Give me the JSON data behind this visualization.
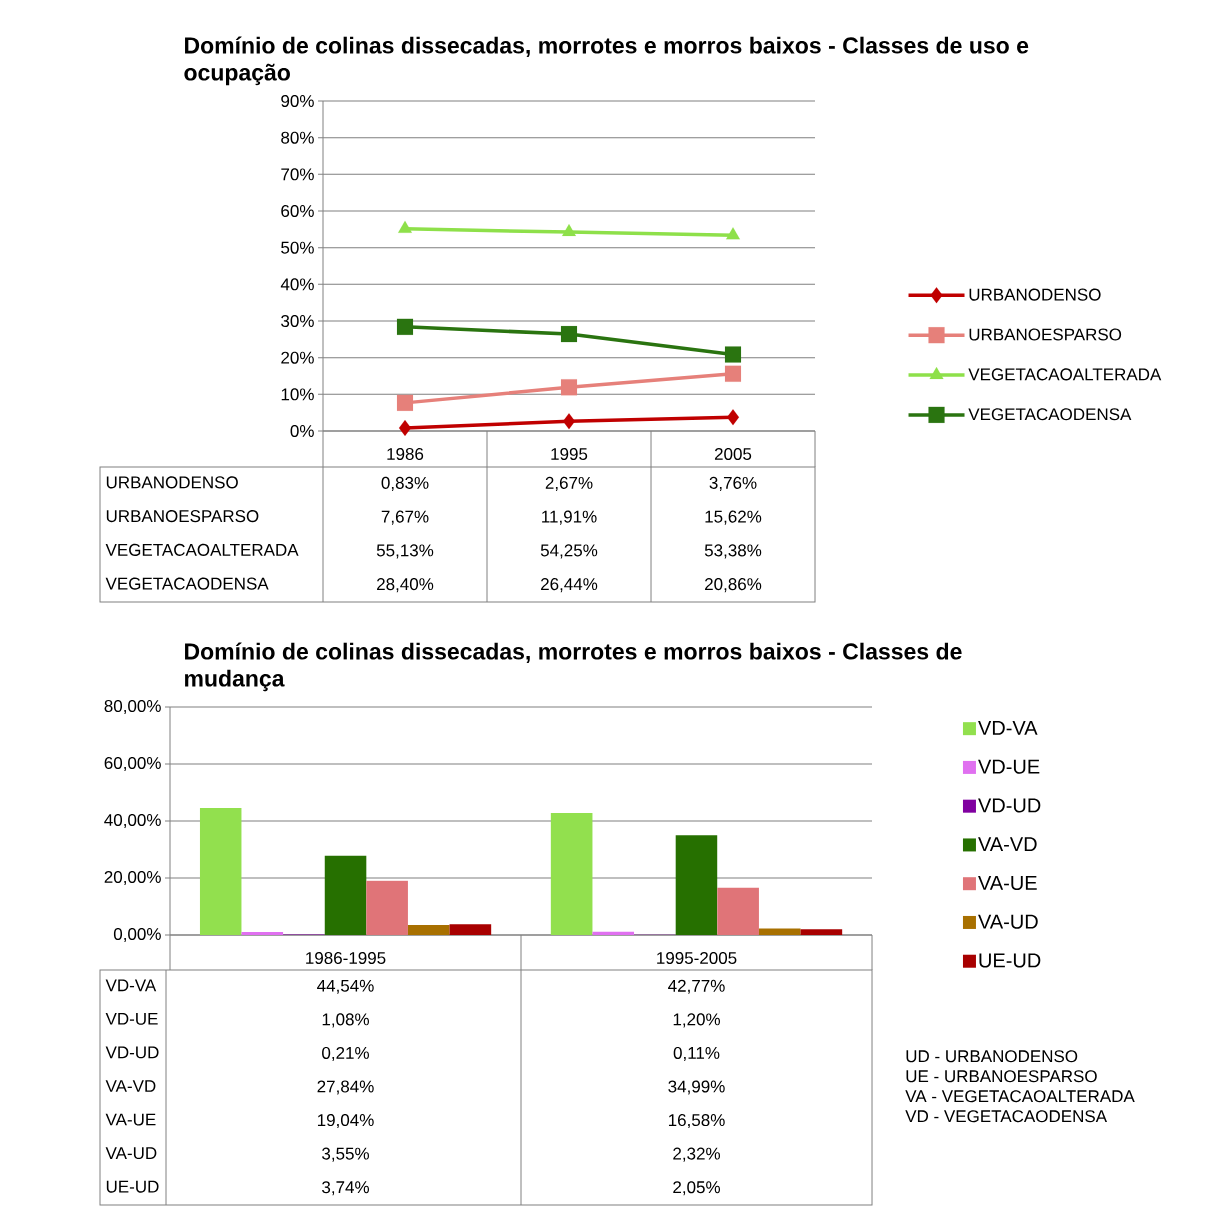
{
  "chart_data": [
    {
      "type": "line",
      "title": "Domínio de colinas dissecadas, morrotes e morros baixos - Classes de uso e ocupação",
      "categories": [
        "1986",
        "1995",
        "2005"
      ],
      "ylim": [
        0,
        90
      ],
      "yticks": [
        {
          "value": 0,
          "label": "0%"
        },
        {
          "value": 10,
          "label": "10%"
        },
        {
          "value": 20,
          "label": "20%"
        },
        {
          "value": 30,
          "label": "30%"
        },
        {
          "value": 40,
          "label": "40%"
        },
        {
          "value": 50,
          "label": "50%"
        },
        {
          "value": 60,
          "label": "60%"
        },
        {
          "value": 70,
          "label": "70%"
        },
        {
          "value": 80,
          "label": "80%"
        },
        {
          "value": 90,
          "label": "90%"
        }
      ],
      "grid": "y",
      "legend": "right",
      "series": [
        {
          "name": "URBANODENSO",
          "color": "#c00000",
          "marker": "diamond",
          "values": [
            0.83,
            2.67,
            3.76
          ],
          "value_labels": [
            "0,83%",
            "2,67%",
            "3,76%"
          ]
        },
        {
          "name": "URBANOESPARSO",
          "color": "#e6807a",
          "marker": "square",
          "values": [
            7.67,
            11.91,
            15.62
          ],
          "value_labels": [
            "7,67%",
            "11,91%",
            "15,62%"
          ]
        },
        {
          "name": "VEGETACAOALTERADA",
          "color": "#8ee04a",
          "marker": "triangle",
          "values": [
            55.13,
            54.25,
            53.38
          ],
          "value_labels": [
            "55,13%",
            "54,25%",
            "53,38%"
          ]
        },
        {
          "name": "VEGETACAODENSA",
          "color": "#2a7410",
          "marker": "square",
          "values": [
            28.4,
            26.44,
            20.86
          ],
          "value_labels": [
            "28,40%",
            "26,44%",
            "20,86%"
          ]
        }
      ]
    },
    {
      "type": "bar",
      "title": "Domínio de colinas dissecadas, morrotes e morros baixos - Classes de mudança",
      "categories": [
        "1986-1995",
        "1995-2005"
      ],
      "ylim": [
        0,
        80
      ],
      "yticks": [
        {
          "value": 0,
          "label": "0,00%"
        },
        {
          "value": 20,
          "label": "20,00%"
        },
        {
          "value": 40,
          "label": "40,00%"
        },
        {
          "value": 60,
          "label": "60,00%"
        },
        {
          "value": 80,
          "label": "80,00%"
        }
      ],
      "grid": "y",
      "legend": "right",
      "annotations": [
        "UD - URBANODENSO",
        "UE - URBANOESPARSO",
        "VA - VEGETACAOALTERADA",
        "VD - VEGETACAODENSA"
      ],
      "series": [
        {
          "name": "VD-VA",
          "color": "#92e04e",
          "values": [
            44.54,
            42.77
          ],
          "value_labels": [
            "44,54%",
            "42,77%"
          ]
        },
        {
          "name": "VD-UE",
          "color": "#e070f0",
          "values": [
            1.08,
            1.2
          ],
          "value_labels": [
            "1,08%",
            "1,20%"
          ]
        },
        {
          "name": "VD-UD",
          "color": "#8000a0",
          "values": [
            0.21,
            0.11
          ],
          "value_labels": [
            "0,21%",
            "0,11%"
          ]
        },
        {
          "name": "VA-VD",
          "color": "#267000",
          "values": [
            27.84,
            34.99
          ],
          "value_labels": [
            "27,84%",
            "34,99%"
          ]
        },
        {
          "name": "VA-UE",
          "color": "#e07478",
          "values": [
            19.04,
            16.58
          ],
          "value_labels": [
            "19,04%",
            "16,58%"
          ]
        },
        {
          "name": "VA-UD",
          "color": "#a87000",
          "values": [
            3.55,
            2.32
          ],
          "value_labels": [
            "3,55%",
            "2,32%"
          ]
        },
        {
          "name": "UE-UD",
          "color": "#a80000",
          "values": [
            3.74,
            2.05
          ],
          "value_labels": [
            "3,74%",
            "2,05%"
          ]
        }
      ]
    }
  ]
}
